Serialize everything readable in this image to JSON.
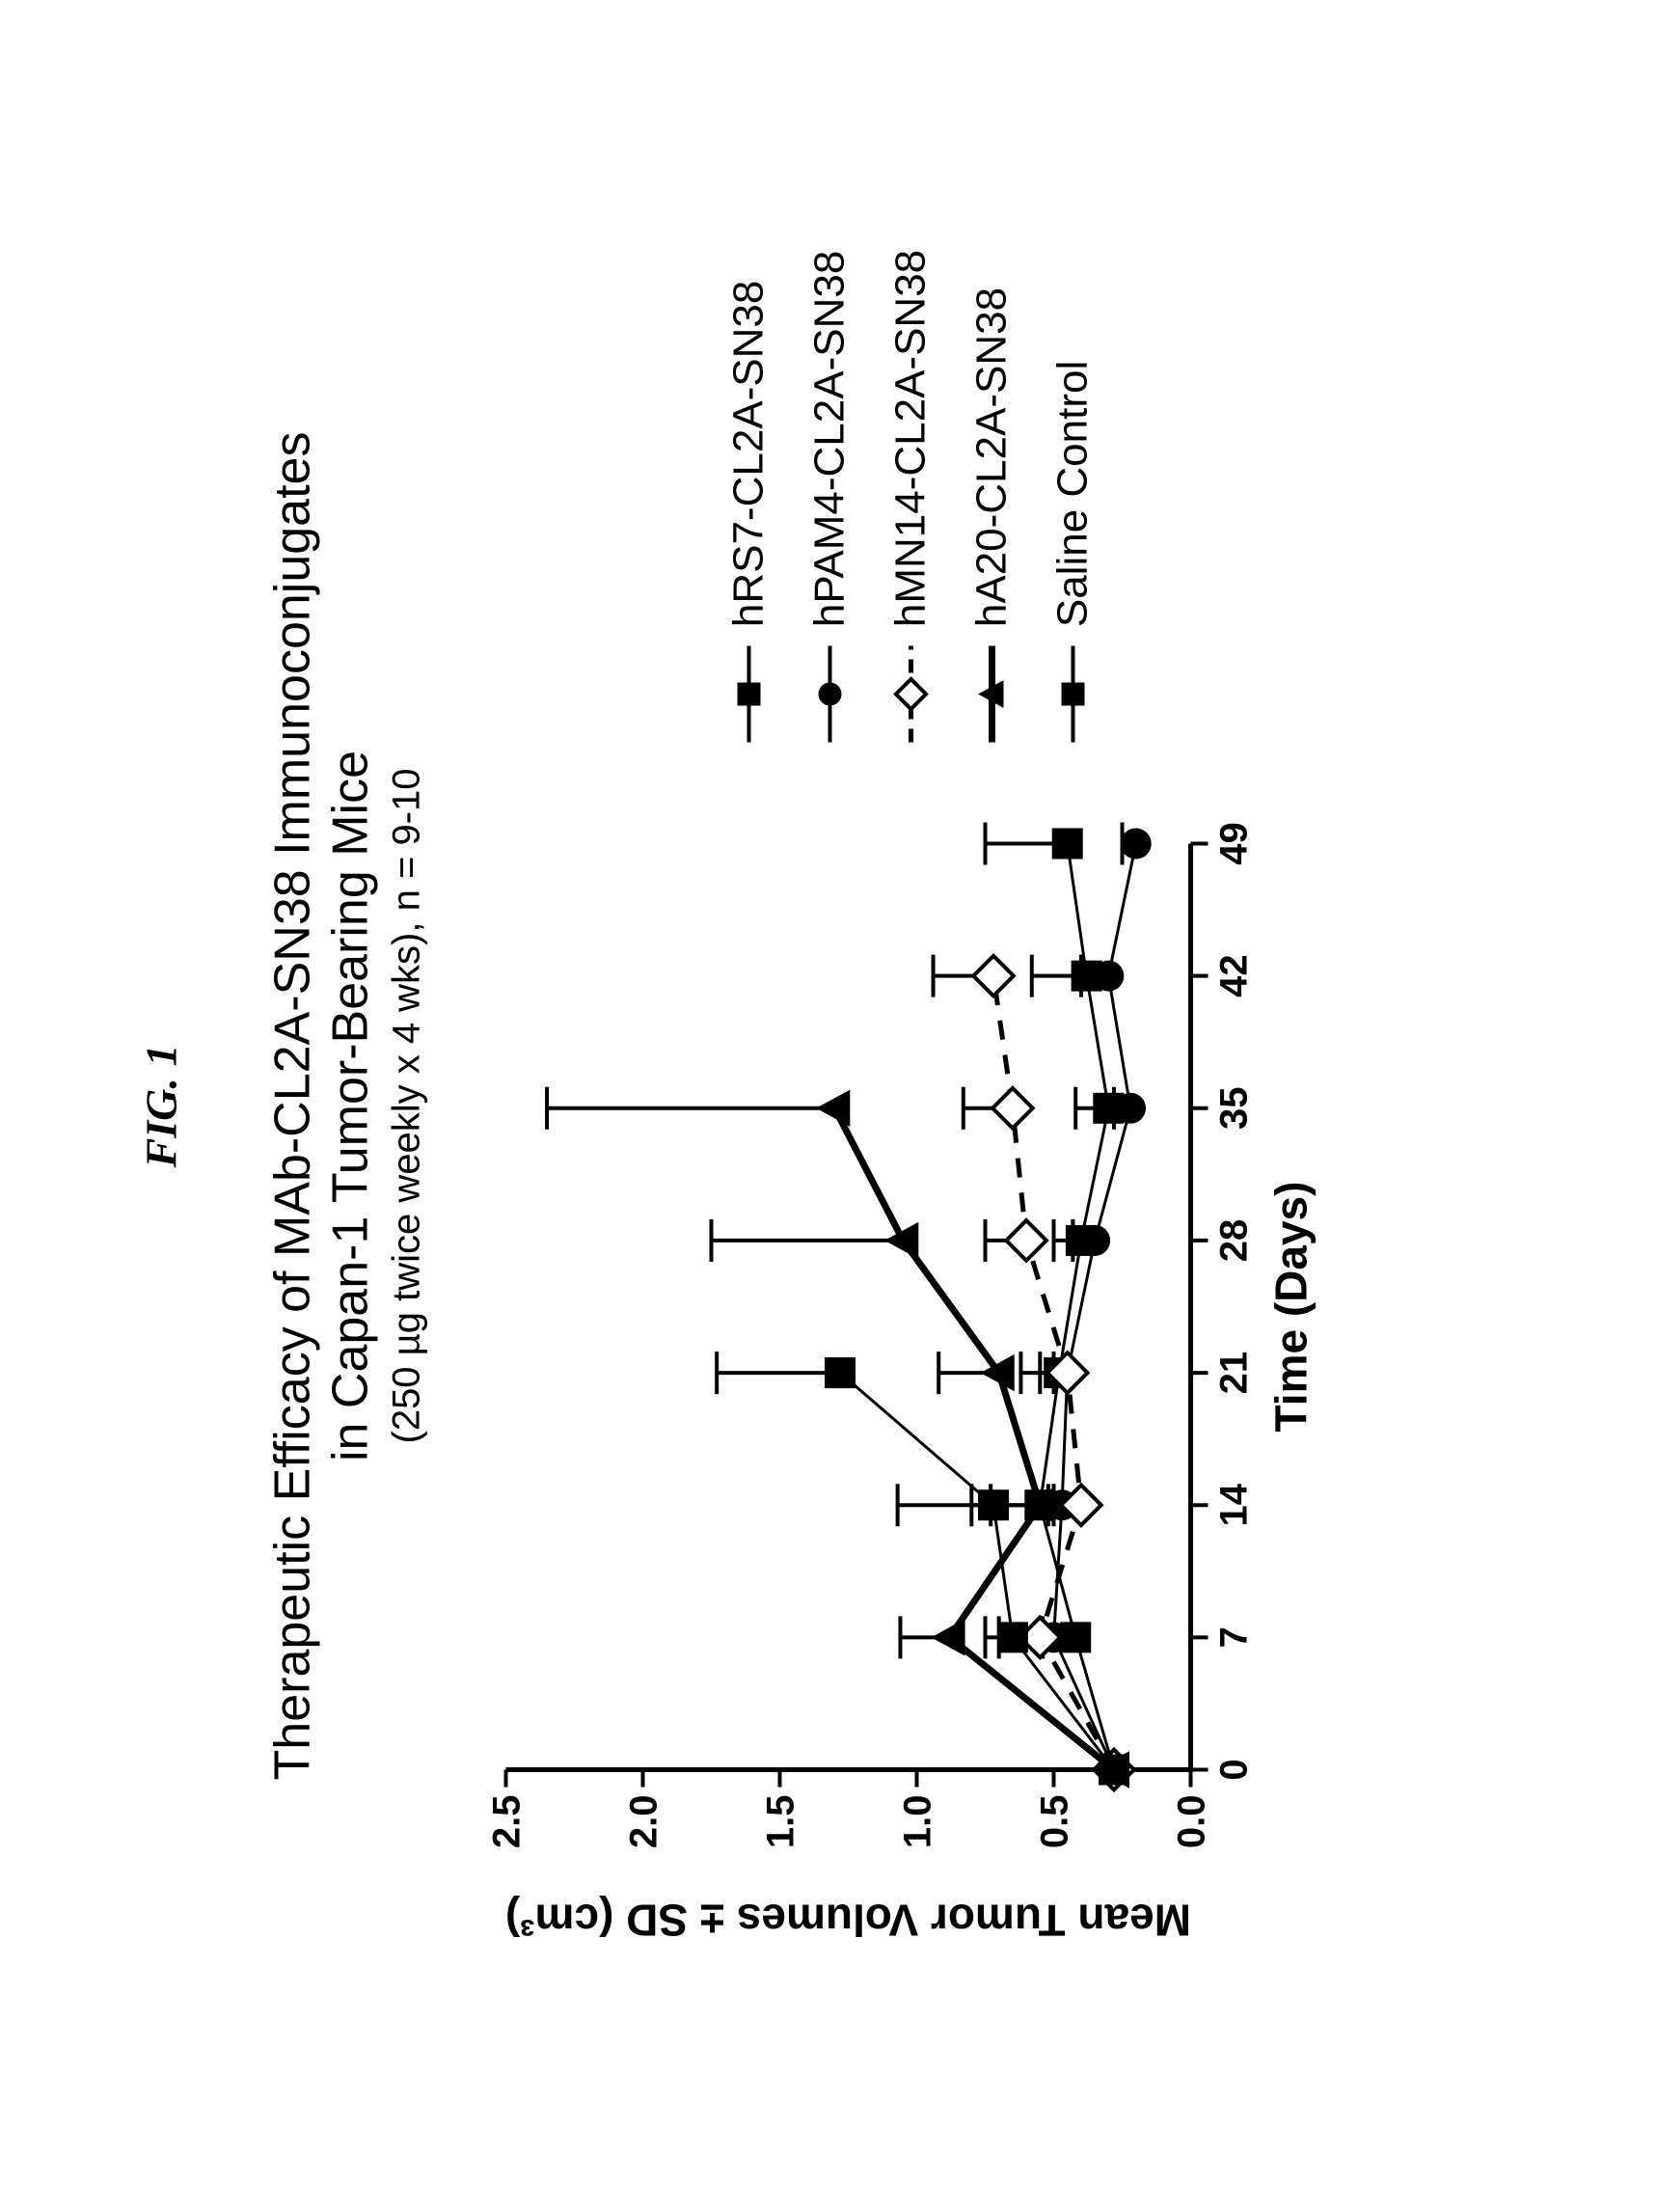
{
  "figure_label": "FIG. 1",
  "title_line1": "Therapeutic Efficacy of MAb-CL2A-SN38 Immunoconjugates",
  "title_line2": "in Capan-1 Tumor-Bearing Mice",
  "title_line3": "(250 µg twice weekly x 4 wks), n = 9-10",
  "chart": {
    "type": "line-scatter-errorbar",
    "background_color": "#ffffff",
    "axis_color": "#000000",
    "x": {
      "label": "Time (Days)",
      "min": 0,
      "max": 49,
      "ticks": [
        0,
        7,
        14,
        21,
        28,
        35,
        42,
        49
      ],
      "tick_fontsize": 40,
      "label_fontsize": 46
    },
    "y": {
      "label": "Mean Tumor Volumes ± SD (cm³)",
      "min": 0.0,
      "max": 2.5,
      "ticks": [
        0.0,
        0.5,
        1.0,
        1.5,
        2.0,
        2.5
      ],
      "tick_labels": [
        "0.0",
        "0.5",
        "1.0",
        "1.5",
        "2.0",
        "2.5"
      ],
      "tick_fontsize": 40,
      "label_fontsize": 46
    },
    "line_width_thin": 3,
    "line_width_thick": 7,
    "errorbar_width": 4,
    "errorbar_cap": 22,
    "marker_size": 16,
    "series": [
      {
        "key": "hRS7",
        "label": "hRS7-CL2A-SN38",
        "color": "#000000",
        "marker": "square-filled",
        "dash": "solid",
        "line_width": 3,
        "x": [
          0,
          7,
          14,
          21,
          28,
          35,
          42,
          49
        ],
        "y": [
          0.28,
          0.42,
          0.55,
          0.48,
          0.4,
          0.3,
          0.38,
          0.45
        ],
        "err": [
          0.0,
          0.12,
          0.18,
          0.14,
          0.1,
          0.12,
          0.2,
          0.3
        ]
      },
      {
        "key": "hPAM4",
        "label": "hPAM4-CL2A-SN38",
        "color": "#000000",
        "marker": "circle-filled",
        "dash": "solid",
        "line_width": 3,
        "x": [
          0,
          7,
          14,
          21,
          28,
          35,
          42,
          49
        ],
        "y": [
          0.28,
          0.5,
          0.47,
          0.45,
          0.35,
          0.22,
          0.3,
          0.2
        ],
        "err": [
          0.0,
          0.05,
          0.05,
          0.05,
          0.08,
          0.06,
          0.1,
          0.05
        ]
      },
      {
        "key": "hMN14",
        "label": "hMN14-CL2A-SN38",
        "color": "#000000",
        "marker": "diamond-open",
        "dash": "dashed",
        "line_width": 5,
        "x": [
          0,
          7,
          14,
          21,
          28,
          35,
          42
        ],
        "y": [
          0.28,
          0.55,
          0.4,
          0.45,
          0.6,
          0.65,
          0.72
        ],
        "err": [
          0.0,
          0.15,
          0.1,
          0.1,
          0.15,
          0.18,
          0.22
        ]
      },
      {
        "key": "hA20",
        "label": "hA20-CL2A-SN38",
        "color": "#000000",
        "marker": "triangle-filled",
        "dash": "solid",
        "line_width": 7,
        "x": [
          0,
          7,
          14,
          21,
          28,
          35
        ],
        "y": [
          0.28,
          0.88,
          0.55,
          0.7,
          1.05,
          1.3
        ],
        "err": [
          0.0,
          0.18,
          0.25,
          0.22,
          0.7,
          1.05
        ]
      },
      {
        "key": "saline",
        "label": "Saline Control",
        "color": "#000000",
        "marker": "square-filled",
        "dash": "solid",
        "line_width": 3,
        "x": [
          0,
          7,
          14,
          21
        ],
        "y": [
          0.28,
          0.65,
          0.72,
          1.28
        ],
        "err": [
          0.0,
          0.1,
          0.35,
          0.45
        ]
      }
    ]
  },
  "legend": {
    "fontsize": 44,
    "position": "right"
  }
}
